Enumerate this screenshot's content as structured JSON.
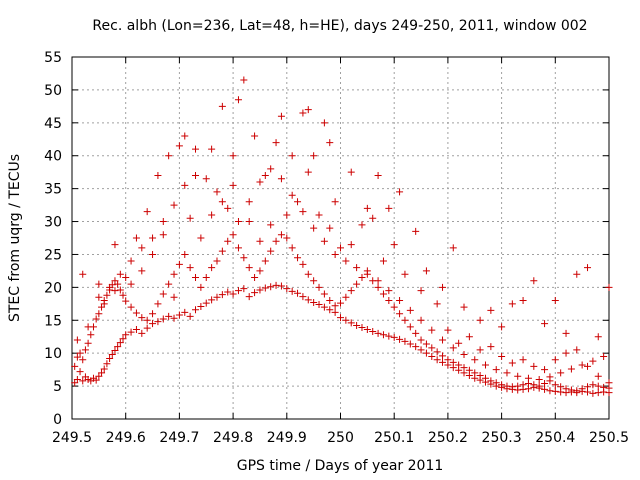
{
  "chart_data": {
    "type": "scatter",
    "title": "Rec. albh (Lon=236, Lat=48, h=HE), days 249-250, 2011, window 002",
    "xlabel": "GPS time / Days of year 2011",
    "ylabel": "STEC from uqrg / TECUs",
    "xlim": [
      249.5,
      250.5
    ],
    "ylim": [
      0,
      55
    ],
    "x_ticks": [
      249.5,
      249.6,
      249.7,
      249.8,
      249.9,
      250.0,
      250.1,
      250.2,
      250.3,
      250.4,
      250.5
    ],
    "x_tick_labels": [
      "249.5",
      "249.6",
      "249.7",
      "249.8",
      "249.9",
      "250",
      "250.1",
      "250.2",
      "250.3",
      "250.4",
      "250.5"
    ],
    "y_ticks": [
      0,
      5,
      10,
      15,
      20,
      25,
      30,
      35,
      40,
      45,
      50,
      55
    ],
    "y_tick_labels": [
      "0",
      "5",
      "10",
      "15",
      "20",
      "25",
      "30",
      "35",
      "40",
      "45",
      "50",
      "55"
    ],
    "grid": true,
    "marker": "+",
    "color": "#cc0000",
    "points": [
      [
        249.505,
        5.5
      ],
      [
        249.51,
        6.0
      ],
      [
        249.515,
        7.2
      ],
      [
        249.52,
        5.8
      ],
      [
        249.525,
        6.4
      ],
      [
        249.53,
        6.0
      ],
      [
        249.535,
        5.8
      ],
      [
        249.54,
        6.2
      ],
      [
        249.545,
        5.9
      ],
      [
        249.55,
        6.5
      ],
      [
        249.555,
        7.0
      ],
      [
        249.56,
        7.6
      ],
      [
        249.565,
        8.4
      ],
      [
        249.57,
        9.2
      ],
      [
        249.575,
        9.8
      ],
      [
        249.58,
        10.4
      ],
      [
        249.585,
        11.0
      ],
      [
        249.59,
        11.6
      ],
      [
        249.595,
        12.2
      ],
      [
        249.6,
        12.8
      ],
      [
        249.61,
        13.2
      ],
      [
        249.62,
        13.6
      ],
      [
        249.63,
        13.0
      ],
      [
        249.64,
        13.8
      ],
      [
        249.65,
        14.5
      ],
      [
        249.66,
        14.8
      ],
      [
        249.67,
        15.2
      ],
      [
        249.68,
        15.6
      ],
      [
        249.69,
        15.3
      ],
      [
        249.7,
        15.8
      ],
      [
        249.71,
        16.2
      ],
      [
        249.72,
        15.6
      ],
      [
        249.73,
        16.6
      ],
      [
        249.74,
        17.1
      ],
      [
        249.75,
        17.6
      ],
      [
        249.76,
        18.1
      ],
      [
        249.77,
        18.5
      ],
      [
        249.78,
        18.9
      ],
      [
        249.79,
        19.3
      ],
      [
        249.8,
        19.0
      ],
      [
        249.81,
        19.5
      ],
      [
        249.82,
        19.8
      ],
      [
        249.83,
        18.6
      ],
      [
        249.84,
        19.2
      ],
      [
        249.85,
        19.6
      ],
      [
        249.86,
        19.9
      ],
      [
        249.87,
        20.1
      ],
      [
        249.88,
        20.3
      ],
      [
        249.89,
        20.2
      ],
      [
        249.9,
        19.8
      ],
      [
        249.91,
        19.4
      ],
      [
        249.92,
        19.1
      ],
      [
        249.93,
        18.6
      ],
      [
        249.94,
        18.1
      ],
      [
        249.95,
        17.7
      ],
      [
        249.96,
        17.4
      ],
      [
        249.97,
        17.0
      ],
      [
        249.98,
        16.6
      ],
      [
        249.99,
        16.2
      ],
      [
        250.0,
        15.4
      ],
      [
        250.01,
        15.0
      ],
      [
        250.02,
        14.6
      ],
      [
        250.03,
        14.2
      ],
      [
        250.04,
        13.9
      ],
      [
        250.05,
        13.6
      ],
      [
        250.06,
        13.3
      ],
      [
        250.07,
        13.0
      ],
      [
        250.08,
        12.8
      ],
      [
        250.09,
        12.6
      ],
      [
        250.1,
        12.4
      ],
      [
        250.11,
        12.1
      ],
      [
        250.12,
        11.8
      ],
      [
        250.13,
        11.4
      ],
      [
        250.14,
        11.0
      ],
      [
        250.15,
        10.5
      ],
      [
        250.16,
        10.0
      ],
      [
        250.17,
        9.5
      ],
      [
        250.18,
        9.0
      ],
      [
        250.19,
        8.6
      ],
      [
        250.2,
        8.2
      ],
      [
        250.21,
        7.8
      ],
      [
        250.22,
        7.4
      ],
      [
        250.23,
        7.0
      ],
      [
        250.24,
        6.6
      ],
      [
        250.25,
        6.2
      ],
      [
        250.26,
        5.9
      ],
      [
        250.27,
        5.6
      ],
      [
        250.28,
        5.3
      ],
      [
        250.29,
        5.0
      ],
      [
        250.3,
        4.8
      ],
      [
        250.31,
        4.6
      ],
      [
        250.32,
        4.5
      ],
      [
        250.33,
        4.4
      ],
      [
        250.34,
        4.5
      ],
      [
        250.35,
        4.6
      ],
      [
        250.36,
        4.8
      ],
      [
        250.37,
        4.7
      ],
      [
        250.38,
        4.5
      ],
      [
        250.39,
        4.3
      ],
      [
        250.4,
        4.2
      ],
      [
        250.41,
        4.1
      ],
      [
        250.42,
        4.0
      ],
      [
        250.43,
        4.1
      ],
      [
        250.44,
        4.0
      ],
      [
        250.45,
        4.2
      ],
      [
        250.46,
        4.1
      ],
      [
        250.47,
        3.9
      ],
      [
        250.48,
        4.0
      ],
      [
        250.49,
        4.1
      ],
      [
        250.5,
        4.0
      ],
      [
        249.505,
        8.0
      ],
      [
        249.51,
        9.4
      ],
      [
        249.515,
        10.0
      ],
      [
        249.52,
        9.0
      ],
      [
        249.525,
        10.5
      ],
      [
        249.53,
        11.5
      ],
      [
        249.535,
        12.8
      ],
      [
        249.54,
        14.0
      ],
      [
        249.545,
        15.2
      ],
      [
        249.55,
        16.0
      ],
      [
        249.555,
        17.0
      ],
      [
        249.56,
        18.0
      ],
      [
        249.565,
        18.8
      ],
      [
        249.57,
        19.6
      ],
      [
        249.575,
        20.4
      ],
      [
        249.58,
        21.0
      ],
      [
        249.585,
        20.5
      ],
      [
        249.59,
        19.6
      ],
      [
        249.595,
        18.8
      ],
      [
        249.6,
        17.9
      ],
      [
        249.61,
        17.0
      ],
      [
        249.62,
        16.1
      ],
      [
        249.63,
        15.4
      ],
      [
        249.64,
        15.0
      ],
      [
        249.65,
        16.0
      ],
      [
        249.66,
        17.5
      ],
      [
        249.67,
        19.0
      ],
      [
        249.68,
        20.5
      ],
      [
        249.69,
        22.0
      ],
      [
        249.7,
        23.5
      ],
      [
        249.71,
        25.0
      ],
      [
        249.72,
        23.0
      ],
      [
        249.73,
        21.5
      ],
      [
        249.74,
        20.0
      ],
      [
        249.75,
        21.5
      ],
      [
        249.76,
        23.0
      ],
      [
        249.77,
        24.0
      ],
      [
        249.78,
        25.5
      ],
      [
        249.79,
        27.0
      ],
      [
        249.8,
        28.0
      ],
      [
        249.81,
        26.0
      ],
      [
        249.82,
        24.5
      ],
      [
        249.83,
        23.0
      ],
      [
        249.84,
        21.5
      ],
      [
        249.85,
        22.5
      ],
      [
        249.86,
        24.0
      ],
      [
        249.87,
        25.5
      ],
      [
        249.88,
        27.0
      ],
      [
        249.89,
        28.0
      ],
      [
        249.9,
        27.5
      ],
      [
        249.91,
        26.0
      ],
      [
        249.92,
        24.5
      ],
      [
        249.93,
        23.5
      ],
      [
        249.94,
        22.0
      ],
      [
        249.95,
        21.0
      ],
      [
        249.96,
        20.0
      ],
      [
        249.97,
        19.0
      ],
      [
        249.98,
        18.0
      ],
      [
        249.99,
        17.2
      ],
      [
        250.0,
        17.6
      ],
      [
        250.01,
        18.5
      ],
      [
        250.02,
        19.5
      ],
      [
        250.03,
        20.5
      ],
      [
        250.04,
        21.5
      ],
      [
        250.05,
        22.5
      ],
      [
        250.06,
        21.0
      ],
      [
        250.07,
        20.0
      ],
      [
        250.08,
        19.0
      ],
      [
        250.09,
        18.0
      ],
      [
        250.1,
        17.0
      ],
      [
        250.11,
        16.0
      ],
      [
        250.12,
        15.0
      ],
      [
        250.13,
        14.0
      ],
      [
        250.14,
        13.0
      ],
      [
        250.15,
        12.0
      ],
      [
        250.16,
        11.4
      ],
      [
        250.17,
        10.8
      ],
      [
        250.18,
        10.2
      ],
      [
        250.19,
        9.6
      ],
      [
        250.2,
        9.0
      ],
      [
        250.21,
        8.6
      ],
      [
        250.22,
        8.2
      ],
      [
        250.23,
        7.8
      ],
      [
        250.24,
        7.4
      ],
      [
        250.25,
        7.0
      ],
      [
        250.26,
        6.6
      ],
      [
        250.27,
        6.2
      ],
      [
        250.28,
        5.8
      ],
      [
        250.29,
        5.5
      ],
      [
        250.3,
        5.2
      ],
      [
        250.31,
        5.0
      ],
      [
        250.32,
        4.9
      ],
      [
        250.33,
        5.0
      ],
      [
        250.34,
        5.2
      ],
      [
        250.35,
        5.4
      ],
      [
        250.36,
        5.2
      ],
      [
        250.37,
        5.0
      ],
      [
        250.38,
        5.4
      ],
      [
        250.39,
        5.8
      ],
      [
        250.4,
        5.2
      ],
      [
        250.41,
        4.9
      ],
      [
        250.42,
        4.6
      ],
      [
        250.43,
        4.4
      ],
      [
        250.44,
        4.3
      ],
      [
        250.45,
        4.6
      ],
      [
        250.46,
        4.9
      ],
      [
        250.47,
        5.2
      ],
      [
        250.48,
        5.0
      ],
      [
        250.49,
        4.8
      ],
      [
        250.5,
        4.7
      ],
      [
        249.51,
        12.0
      ],
      [
        249.53,
        14.0
      ],
      [
        249.55,
        18.5
      ],
      [
        249.57,
        20.0
      ],
      [
        249.59,
        22.0
      ],
      [
        249.61,
        24.0
      ],
      [
        249.63,
        26.0
      ],
      [
        249.65,
        27.5
      ],
      [
        249.67,
        30.0
      ],
      [
        249.69,
        32.5
      ],
      [
        249.71,
        35.5
      ],
      [
        249.73,
        37.0
      ],
      [
        249.75,
        36.5
      ],
      [
        249.77,
        34.5
      ],
      [
        249.79,
        32.0
      ],
      [
        249.81,
        30.0
      ],
      [
        249.83,
        33.0
      ],
      [
        249.85,
        36.0
      ],
      [
        249.87,
        38.0
      ],
      [
        249.89,
        36.5
      ],
      [
        249.91,
        34.0
      ],
      [
        249.93,
        31.5
      ],
      [
        249.95,
        29.0
      ],
      [
        249.97,
        27.0
      ],
      [
        249.99,
        25.0
      ],
      [
        250.01,
        24.0
      ],
      [
        250.03,
        23.0
      ],
      [
        250.05,
        22.0
      ],
      [
        250.07,
        21.0
      ],
      [
        250.09,
        19.5
      ],
      [
        250.11,
        18.0
      ],
      [
        250.13,
        16.5
      ],
      [
        250.15,
        15.0
      ],
      [
        250.17,
        13.5
      ],
      [
        250.19,
        12.0
      ],
      [
        250.21,
        10.8
      ],
      [
        250.23,
        9.8
      ],
      [
        250.25,
        9.0
      ],
      [
        250.27,
        8.2
      ],
      [
        250.29,
        7.5
      ],
      [
        250.31,
        7.0
      ],
      [
        250.33,
        6.5
      ],
      [
        250.35,
        6.2
      ],
      [
        250.37,
        6.0
      ],
      [
        250.39,
        6.4
      ],
      [
        250.41,
        7.0
      ],
      [
        250.43,
        7.6
      ],
      [
        250.45,
        8.2
      ],
      [
        250.47,
        8.8
      ],
      [
        250.49,
        9.5
      ],
      [
        249.52,
        22.0
      ],
      [
        249.55,
        20.5
      ],
      [
        249.58,
        19.5
      ],
      [
        249.6,
        21.5
      ],
      [
        249.62,
        27.5
      ],
      [
        249.64,
        31.5
      ],
      [
        249.66,
        37.0
      ],
      [
        249.68,
        40.0
      ],
      [
        249.7,
        41.5
      ],
      [
        249.71,
        43.0
      ],
      [
        249.73,
        41.0
      ],
      [
        249.76,
        41.0
      ],
      [
        249.78,
        47.5
      ],
      [
        249.8,
        40.0
      ],
      [
        249.81,
        48.5
      ],
      [
        249.82,
        51.5
      ],
      [
        249.84,
        43.0
      ],
      [
        249.86,
        37.0
      ],
      [
        249.88,
        42.0
      ],
      [
        249.89,
        46.0
      ],
      [
        249.91,
        40.0
      ],
      [
        249.93,
        46.5
      ],
      [
        249.94,
        47.0
      ],
      [
        249.95,
        40.0
      ],
      [
        249.97,
        45.0
      ],
      [
        249.98,
        42.0
      ],
      [
        249.99,
        33.0
      ],
      [
        250.02,
        37.5
      ],
      [
        250.05,
        32.0
      ],
      [
        250.07,
        37.0
      ],
      [
        250.09,
        32.0
      ],
      [
        250.11,
        34.5
      ],
      [
        250.14,
        28.5
      ],
      [
        250.16,
        22.5
      ],
      [
        250.19,
        20.0
      ],
      [
        250.21,
        26.0
      ],
      [
        250.23,
        17.0
      ],
      [
        250.26,
        15.0
      ],
      [
        250.28,
        16.5
      ],
      [
        250.3,
        14.0
      ],
      [
        250.32,
        17.5
      ],
      [
        250.34,
        18.0
      ],
      [
        250.36,
        21.0
      ],
      [
        250.38,
        14.5
      ],
      [
        250.4,
        18.0
      ],
      [
        250.42,
        13.0
      ],
      [
        250.44,
        22.0
      ],
      [
        250.46,
        23.0
      ],
      [
        250.48,
        12.5
      ],
      [
        250.5,
        20.0
      ],
      [
        249.56,
        17.5
      ],
      [
        249.58,
        26.5
      ],
      [
        249.61,
        20.5
      ],
      [
        249.63,
        22.5
      ],
      [
        249.65,
        25.0
      ],
      [
        249.67,
        28.0
      ],
      [
        249.69,
        18.5
      ],
      [
        249.72,
        30.5
      ],
      [
        249.74,
        27.5
      ],
      [
        249.76,
        31.0
      ],
      [
        249.78,
        33.0
      ],
      [
        249.8,
        35.5
      ],
      [
        249.83,
        30.0
      ],
      [
        249.85,
        27.0
      ],
      [
        249.87,
        29.5
      ],
      [
        249.9,
        31.0
      ],
      [
        249.92,
        33.0
      ],
      [
        249.94,
        37.5
      ],
      [
        249.96,
        31.0
      ],
      [
        249.98,
        29.0
      ],
      [
        250.0,
        26.0
      ],
      [
        250.02,
        26.5
      ],
      [
        250.04,
        29.5
      ],
      [
        250.06,
        30.5
      ],
      [
        250.08,
        24.0
      ],
      [
        250.1,
        26.5
      ],
      [
        250.12,
        22.0
      ],
      [
        250.15,
        19.5
      ],
      [
        250.18,
        17.5
      ],
      [
        250.2,
        13.5
      ],
      [
        250.22,
        11.5
      ],
      [
        250.24,
        12.5
      ],
      [
        250.26,
        10.5
      ],
      [
        250.28,
        11.0
      ],
      [
        250.3,
        9.5
      ],
      [
        250.32,
        8.5
      ],
      [
        250.34,
        9.0
      ],
      [
        250.36,
        8.0
      ],
      [
        250.38,
        7.5
      ],
      [
        250.4,
        9.0
      ],
      [
        250.42,
        10.0
      ],
      [
        250.44,
        10.5
      ],
      [
        250.46,
        8.0
      ],
      [
        250.48,
        6.5
      ],
      [
        250.5,
        5.5
      ]
    ]
  }
}
